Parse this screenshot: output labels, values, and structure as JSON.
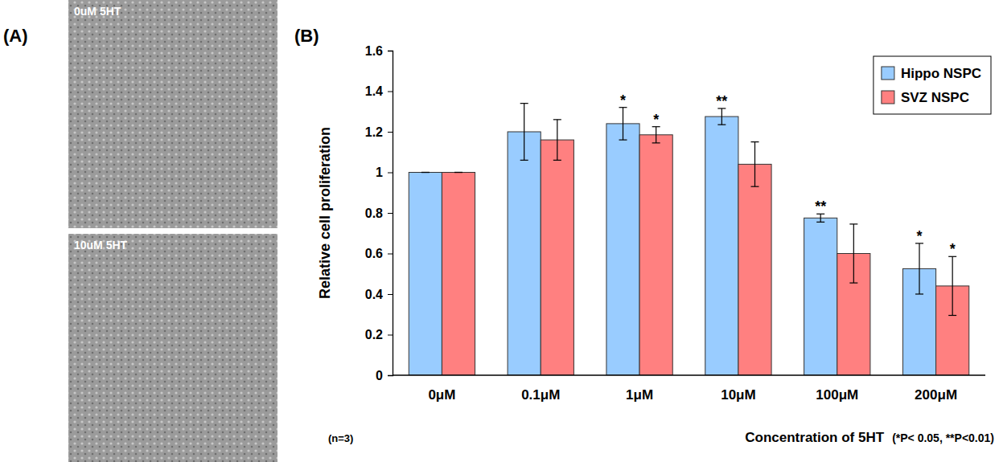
{
  "panel_labels": [
    "(A)",
    "(B)"
  ],
  "images": [
    {
      "label": "0uM 5HT"
    },
    {
      "label": "10uM 5HT"
    }
  ],
  "chart_data": {
    "type": "bar",
    "x_label": "Concentration of 5HT",
    "y_label": "Relative cell proliferation",
    "annotations": [
      "(n=3)",
      "(*P< 0.05, **P<0.01)"
    ],
    "categories": [
      "0μM",
      "0.1μM",
      "1μM",
      "10μM",
      "100μM",
      "200μM"
    ],
    "series": [
      {
        "name": "Hippo NSPC",
        "color": "#99ccff",
        "values": [
          1,
          1.2,
          1.24,
          1.275,
          0.775,
          0.525
        ],
        "errors": [
          0,
          0.14,
          0.08,
          0.04,
          0.02,
          0.125
        ],
        "significance": [
          null,
          null,
          "*",
          "**",
          "**",
          "*"
        ]
      },
      {
        "name": "SVZ NSPC",
        "color": "#ff8080",
        "values": [
          1,
          1.16,
          1.185,
          1.04,
          0.6,
          0.44
        ],
        "errors": [
          0,
          0.1,
          0.04,
          0.11,
          0.145,
          0.145
        ],
        "significance": [
          null,
          null,
          "*",
          null,
          null,
          "*"
        ]
      }
    ],
    "ylim": [
      0,
      1.6
    ],
    "yticks": [
      0,
      0.2,
      0.4,
      0.6,
      0.8,
      1,
      1.2,
      1.4,
      1.6
    ],
    "grid": false,
    "legend": "upper right"
  }
}
